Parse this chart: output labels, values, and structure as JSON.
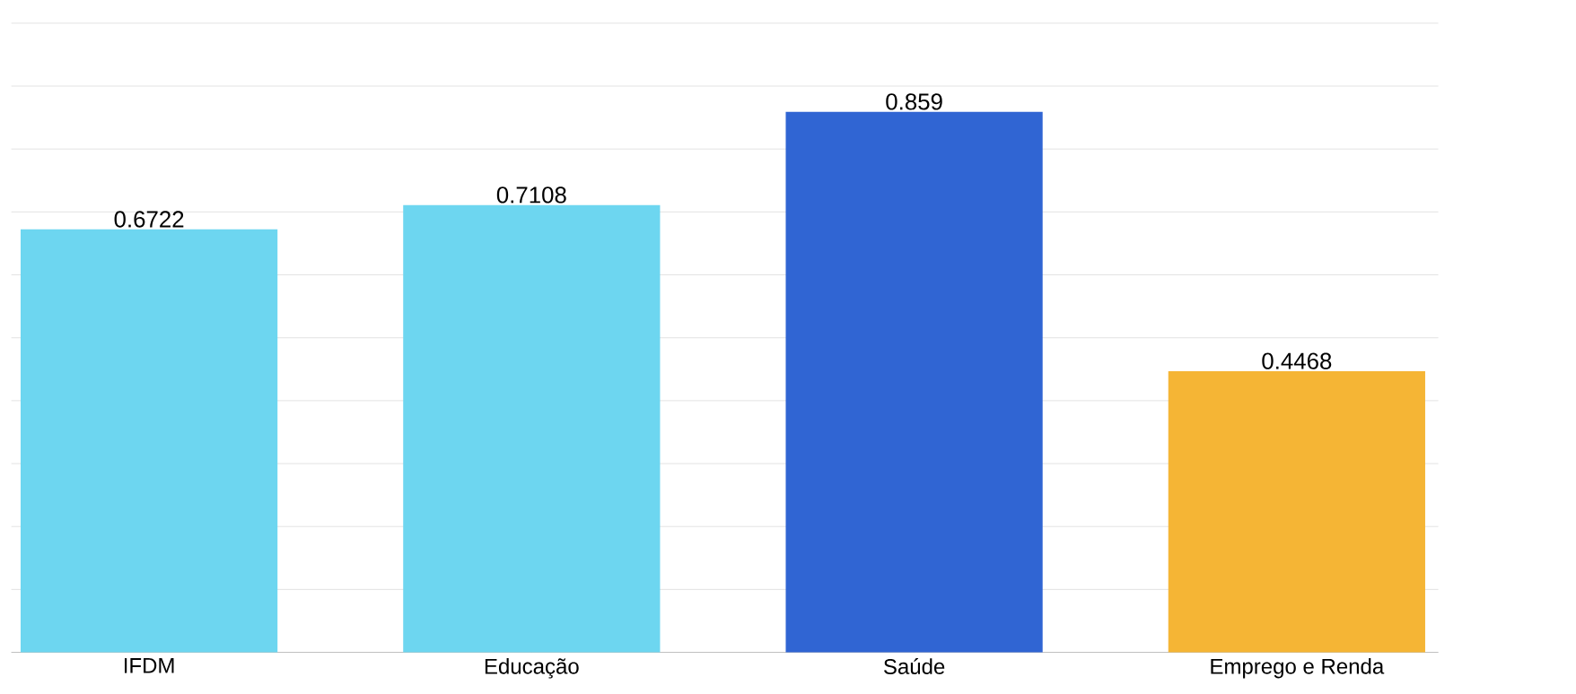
{
  "chart_data": {
    "type": "bar",
    "categories": [
      "IFDM",
      "Educação",
      "Saúde",
      "Emprego e Renda"
    ],
    "values": [
      0.6722,
      0.7108,
      0.859,
      0.4468
    ],
    "colors": [
      "#6dd6f0",
      "#6dd6f0",
      "#3065d3",
      "#f5b535"
    ],
    "ylim": [
      0,
      1
    ],
    "yticks": [
      {
        "value": 0,
        "label": null
      },
      {
        "value": 0.1,
        "label": null
      },
      {
        "value": 0.2,
        "label": null
      },
      {
        "value": 0.3,
        "label": null
      },
      {
        "value": 0.4,
        "label": null
      },
      {
        "value": 0.5,
        "label": null
      },
      {
        "value": 0.6,
        "label": null
      },
      {
        "value": 0.7,
        "label": null
      },
      {
        "value": 0.8,
        "label": null
      },
      {
        "value": 0.9,
        "label": null
      },
      {
        "value": 1,
        "label": null
      }
    ],
    "tick_labels": "x",
    "grid": "y",
    "data_labels": true
  }
}
